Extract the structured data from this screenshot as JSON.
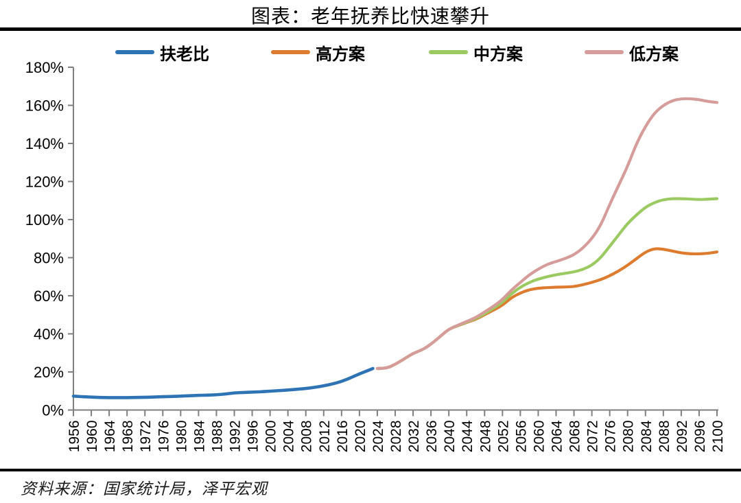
{
  "page": {
    "title": "图表：老年抚养比快速攀升",
    "source": "资料来源：国家统计局，泽平宏观"
  },
  "chart_data": {
    "type": "line",
    "title": "图表：老年抚养比快速攀升",
    "xlabel": "",
    "ylabel": "",
    "grid": false,
    "legend_position": "top",
    "xlim": [
      1956,
      2100
    ],
    "ylim": [
      0,
      180
    ],
    "y_tick_step": 20,
    "y_tick_suffix": "%",
    "x_tick_step": 4,
    "x_ticks": [
      1956,
      1960,
      1964,
      1968,
      1972,
      1976,
      1980,
      1984,
      1988,
      1992,
      1996,
      2000,
      2004,
      2008,
      2012,
      2016,
      2020,
      2024,
      2028,
      2032,
      2036,
      2040,
      2044,
      2048,
      2052,
      2056,
      2060,
      2064,
      2068,
      2072,
      2076,
      2080,
      2084,
      2088,
      2092,
      2096,
      2100
    ],
    "axis_color": "#7f7f7f",
    "series": [
      {
        "name": "扶老比",
        "color": "#2E74B5",
        "x": [
          1956,
          1958,
          1960,
          1962,
          1964,
          1966,
          1968,
          1970,
          1972,
          1974,
          1976,
          1978,
          1980,
          1982,
          1984,
          1986,
          1988,
          1990,
          1992,
          1994,
          1996,
          1998,
          2000,
          2002,
          2004,
          2006,
          2008,
          2010,
          2012,
          2014,
          2016,
          2018,
          2020,
          2022,
          2023
        ],
        "values": [
          7.3,
          7.0,
          6.8,
          6.6,
          6.5,
          6.5,
          6.5,
          6.6,
          6.7,
          6.8,
          7.0,
          7.1,
          7.3,
          7.5,
          7.7,
          7.8,
          8.0,
          8.4,
          9.0,
          9.2,
          9.4,
          9.6,
          9.9,
          10.2,
          10.5,
          10.9,
          11.3,
          11.9,
          12.7,
          13.7,
          15.0,
          16.9,
          19.0,
          20.8,
          21.8
        ]
      },
      {
        "name": "高方案",
        "color": "#DD7B2E",
        "x": [
          2024,
          2026,
          2028,
          2030,
          2032,
          2034,
          2036,
          2038,
          2040,
          2042,
          2044,
          2046,
          2048,
          2050,
          2052,
          2054,
          2056,
          2058,
          2060,
          2062,
          2064,
          2066,
          2068,
          2070,
          2072,
          2074,
          2076,
          2078,
          2080,
          2082,
          2084,
          2086,
          2088,
          2090,
          2092,
          2094,
          2096,
          2098,
          2100
        ],
        "values": [
          21.8,
          21.8,
          24.0,
          26.8,
          29.8,
          31.5,
          34.5,
          38.5,
          42.5,
          44.2,
          46.0,
          47.6,
          50.0,
          52.5,
          55.0,
          59.0,
          61.5,
          63.2,
          64.0,
          64.3,
          64.5,
          64.6,
          64.8,
          65.8,
          67.0,
          68.5,
          70.5,
          73.0,
          76.0,
          79.5,
          83.0,
          84.8,
          84.5,
          83.5,
          82.5,
          82.0,
          82.0,
          82.3,
          83.0
        ]
      },
      {
        "name": "中方案",
        "color": "#9CCA62",
        "x": [
          2024,
          2026,
          2028,
          2030,
          2032,
          2034,
          2036,
          2038,
          2040,
          2042,
          2044,
          2046,
          2048,
          2050,
          2052,
          2054,
          2056,
          2058,
          2060,
          2062,
          2064,
          2066,
          2068,
          2070,
          2072,
          2074,
          2076,
          2078,
          2080,
          2082,
          2084,
          2086,
          2088,
          2090,
          2092,
          2094,
          2096,
          2098,
          2100
        ],
        "values": [
          21.8,
          21.8,
          24.0,
          26.8,
          29.8,
          31.5,
          34.5,
          38.5,
          42.5,
          44.3,
          46.2,
          48.0,
          50.5,
          53.5,
          56.5,
          61.0,
          64.5,
          67.0,
          68.8,
          70.0,
          71.0,
          71.8,
          72.5,
          73.8,
          76.0,
          80.0,
          86.0,
          92.0,
          98.0,
          102.5,
          106.5,
          109.0,
          110.5,
          111.0,
          111.0,
          110.8,
          110.5,
          110.7,
          111.0
        ]
      },
      {
        "name": "低方案",
        "color": "#D59C99",
        "x": [
          2024,
          2026,
          2028,
          2030,
          2032,
          2034,
          2036,
          2038,
          2040,
          2042,
          2044,
          2046,
          2048,
          2050,
          2052,
          2054,
          2056,
          2058,
          2060,
          2062,
          2064,
          2066,
          2068,
          2070,
          2072,
          2074,
          2076,
          2078,
          2080,
          2082,
          2084,
          2086,
          2088,
          2090,
          2092,
          2094,
          2096,
          2098,
          2100
        ],
        "values": [
          21.8,
          21.8,
          24.0,
          26.8,
          29.8,
          31.5,
          34.5,
          38.5,
          42.5,
          44.5,
          46.5,
          48.5,
          51.5,
          54.5,
          58.0,
          63.0,
          67.0,
          71.0,
          74.0,
          76.5,
          78.0,
          79.5,
          81.5,
          85.0,
          90.0,
          97.0,
          108.0,
          118.0,
          128.0,
          140.0,
          149.0,
          156.0,
          160.0,
          162.5,
          163.5,
          163.5,
          163.0,
          162.0,
          161.5
        ]
      }
    ]
  }
}
